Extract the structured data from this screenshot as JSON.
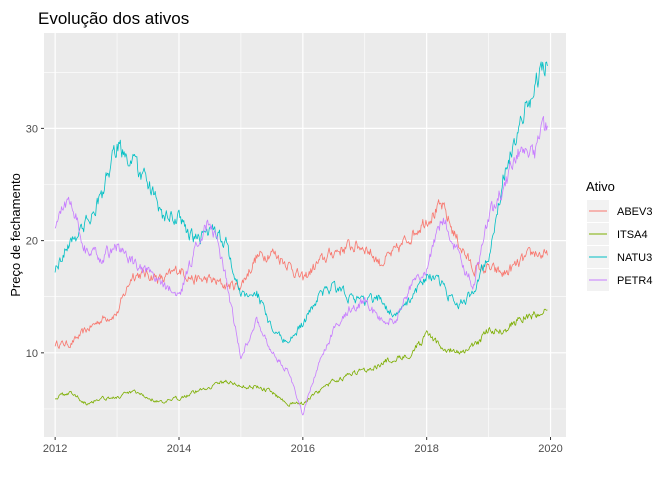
{
  "chart_data": {
    "type": "line",
    "title": "Evolução dos ativos",
    "xlabel": "",
    "ylabel": "Preço de fechamento",
    "x_ticks": [
      "2012",
      "2014",
      "2016",
      "2018",
      "2020"
    ],
    "y_ticks": [
      "10",
      "20",
      "30"
    ],
    "xlim": [
      2011.82,
      2020.25
    ],
    "ylim": [
      2.5,
      38.5
    ],
    "grid": true,
    "legend": {
      "title": "Ativo",
      "placement": "right"
    },
    "x": [
      2012.0,
      2012.25,
      2012.5,
      2012.75,
      2013.0,
      2013.25,
      2013.5,
      2013.75,
      2014.0,
      2014.25,
      2014.5,
      2014.75,
      2015.0,
      2015.25,
      2015.5,
      2015.75,
      2016.0,
      2016.25,
      2016.5,
      2016.75,
      2017.0,
      2017.25,
      2017.5,
      2017.75,
      2018.0,
      2018.25,
      2018.5,
      2018.75,
      2019.0,
      2019.25,
      2019.5,
      2019.75,
      2019.95
    ],
    "series": [
      {
        "name": "ABEV3",
        "color": "#F8766D",
        "values": [
          10.8,
          10.8,
          12.0,
          13.0,
          13.5,
          17.0,
          17.0,
          16.5,
          17.5,
          16.5,
          16.5,
          16.0,
          16.0,
          18.5,
          19.0,
          18.0,
          16.5,
          18.0,
          19.0,
          19.5,
          19.5,
          18.0,
          19.0,
          20.5,
          22.0,
          23.0,
          20.0,
          17.5,
          17.5,
          17.0,
          18.0,
          19.0,
          18.5
        ]
      },
      {
        "name": "ITSA4",
        "color": "#7CAE00",
        "values": [
          6.0,
          6.5,
          5.5,
          6.0,
          6.0,
          6.5,
          6.0,
          5.5,
          6.0,
          6.5,
          7.0,
          7.5,
          7.0,
          7.0,
          6.5,
          5.5,
          5.5,
          6.5,
          7.5,
          8.0,
          8.5,
          9.0,
          9.5,
          10.0,
          11.5,
          10.5,
          10.0,
          10.5,
          12.0,
          12.0,
          13.0,
          13.5,
          13.5
        ]
      },
      {
        "name": "NATU3",
        "color": "#00BFC4",
        "values": [
          17.5,
          20.0,
          21.5,
          24.0,
          28.5,
          27.0,
          25.0,
          22.0,
          22.0,
          20.0,
          21.0,
          20.0,
          15.0,
          15.5,
          12.0,
          11.0,
          12.5,
          15.0,
          16.0,
          15.0,
          14.5,
          15.0,
          13.0,
          15.0,
          17.0,
          16.0,
          14.0,
          15.5,
          19.0,
          26.0,
          30.0,
          34.0,
          36.5
        ]
      },
      {
        "name": "PETR4",
        "color": "#C77CFF",
        "values": [
          21.5,
          24.0,
          19.0,
          18.5,
          19.5,
          18.0,
          17.0,
          16.0,
          15.0,
          19.0,
          22.0,
          17.0,
          9.5,
          13.0,
          10.0,
          8.5,
          4.5,
          9.0,
          12.0,
          14.0,
          14.5,
          13.0,
          13.0,
          16.0,
          17.5,
          22.0,
          19.0,
          16.0,
          22.0,
          25.0,
          28.0,
          28.0,
          30.5
        ]
      }
    ]
  }
}
